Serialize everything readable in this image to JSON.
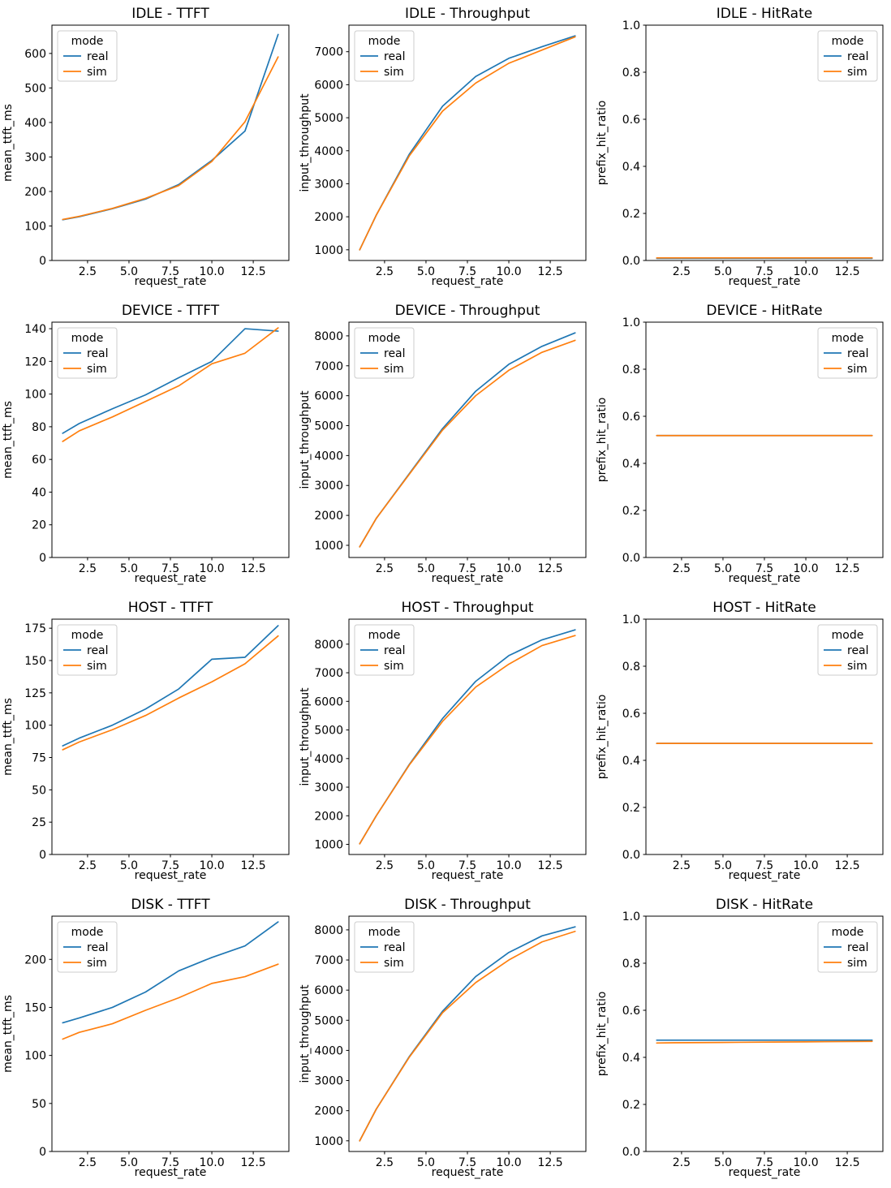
{
  "figure": {
    "background": "#ffffff",
    "legend_title": "mode",
    "series_names": [
      "real",
      "sim"
    ],
    "series_colors": {
      "real": "#1f77b4",
      "sim": "#ff7f0e"
    },
    "rows": [
      "IDLE",
      "DEVICE",
      "HOST",
      "DISK"
    ],
    "columns": [
      "TTFT",
      "Throughput",
      "HitRate"
    ]
  },
  "chart_data": [
    {
      "id": "idle-ttft",
      "type": "line",
      "title": "IDLE - TTFT",
      "xlabel": "request_rate",
      "ylabel": "mean_ttft_ms",
      "x": [
        1,
        2,
        4,
        6,
        8,
        10,
        12,
        14
      ],
      "series": [
        {
          "name": "real",
          "color": "#1f77b4",
          "values": [
            118,
            127,
            150,
            178,
            220,
            290,
            375,
            655
          ]
        },
        {
          "name": "sim",
          "color": "#ff7f0e",
          "values": [
            119,
            128,
            151,
            180,
            217,
            287,
            402,
            590
          ]
        }
      ],
      "xlim": [
        0.35,
        14.65
      ],
      "ylim": [
        0,
        682
      ],
      "xticks": [
        2.5,
        5.0,
        7.5,
        10.0,
        12.5
      ],
      "xtick_labels": [
        "2.5",
        "5.0",
        "7.5",
        "10.0",
        "12.5"
      ],
      "yticks": [
        0,
        100,
        200,
        300,
        400,
        500,
        600
      ],
      "ytick_labels": [
        "0",
        "100",
        "200",
        "300",
        "400",
        "500",
        "600"
      ],
      "grid": false,
      "legend": {
        "title": "mode",
        "position": "upper-left",
        "entries": [
          "real",
          "sim"
        ]
      }
    },
    {
      "id": "idle-throughput",
      "type": "line",
      "title": "IDLE - Throughput",
      "xlabel": "request_rate",
      "ylabel": "input_throughput",
      "x": [
        1,
        2,
        4,
        6,
        8,
        10,
        12,
        14
      ],
      "series": [
        {
          "name": "real",
          "color": "#1f77b4",
          "values": [
            1000,
            2050,
            3900,
            5350,
            6250,
            6800,
            7150,
            7480
          ]
        },
        {
          "name": "sim",
          "color": "#ff7f0e",
          "values": [
            1000,
            2050,
            3850,
            5200,
            6050,
            6650,
            7050,
            7450
          ]
        }
      ],
      "xlim": [
        0.35,
        14.65
      ],
      "ylim": [
        676,
        7804
      ],
      "xticks": [
        2.5,
        5.0,
        7.5,
        10.0,
        12.5
      ],
      "xtick_labels": [
        "2.5",
        "5.0",
        "7.5",
        "10.0",
        "12.5"
      ],
      "yticks": [
        1000,
        2000,
        3000,
        4000,
        5000,
        6000,
        7000
      ],
      "ytick_labels": [
        "1000",
        "2000",
        "3000",
        "4000",
        "5000",
        "6000",
        "7000"
      ],
      "grid": false,
      "legend": {
        "title": "mode",
        "position": "upper-left",
        "entries": [
          "real",
          "sim"
        ]
      }
    },
    {
      "id": "idle-hitrate",
      "type": "line",
      "title": "IDLE - HitRate",
      "xlabel": "request_rate",
      "ylabel": "prefix_hit_ratio",
      "x": [
        1,
        2,
        4,
        6,
        8,
        10,
        12,
        14
      ],
      "series": [
        {
          "name": "real",
          "color": "#1f77b4",
          "values": [
            0.009,
            0.009,
            0.009,
            0.009,
            0.009,
            0.009,
            0.009,
            0.009
          ]
        },
        {
          "name": "sim",
          "color": "#ff7f0e",
          "values": [
            0.011,
            0.011,
            0.011,
            0.011,
            0.011,
            0.011,
            0.011,
            0.011
          ]
        }
      ],
      "xlim": [
        0.35,
        14.65
      ],
      "ylim": [
        0,
        1.0
      ],
      "xticks": [
        2.5,
        5.0,
        7.5,
        10.0,
        12.5
      ],
      "xtick_labels": [
        "2.5",
        "5.0",
        "7.5",
        "10.0",
        "12.5"
      ],
      "yticks": [
        0.0,
        0.2,
        0.4,
        0.6,
        0.8,
        1.0
      ],
      "ytick_labels": [
        "0.0",
        "0.2",
        "0.4",
        "0.6",
        "0.8",
        "1.0"
      ],
      "grid": false,
      "legend": {
        "title": "mode",
        "position": "upper-right",
        "entries": [
          "real",
          "sim"
        ]
      }
    },
    {
      "id": "device-ttft",
      "type": "line",
      "title": "DEVICE - TTFT",
      "xlabel": "request_rate",
      "ylabel": "mean_ttft_ms",
      "x": [
        1,
        2,
        4,
        6,
        8,
        10,
        12,
        14
      ],
      "series": [
        {
          "name": "real",
          "color": "#1f77b4",
          "values": [
            76,
            82,
            91,
            99.5,
            110,
            120,
            140,
            138.5
          ]
        },
        {
          "name": "sim",
          "color": "#ff7f0e",
          "values": [
            71,
            77.5,
            86,
            95.5,
            105,
            118.5,
            125,
            140.5
          ]
        }
      ],
      "xlim": [
        0.35,
        14.65
      ],
      "ylim": [
        0,
        144
      ],
      "xticks": [
        2.5,
        5.0,
        7.5,
        10.0,
        12.5
      ],
      "xtick_labels": [
        "2.5",
        "5.0",
        "7.5",
        "10.0",
        "12.5"
      ],
      "yticks": [
        0,
        20,
        40,
        60,
        80,
        100,
        120,
        140
      ],
      "ytick_labels": [
        "0",
        "20",
        "40",
        "60",
        "80",
        "100",
        "120",
        "140"
      ],
      "grid": false,
      "legend": {
        "title": "mode",
        "position": "upper-left",
        "entries": [
          "real",
          "sim"
        ]
      }
    },
    {
      "id": "device-throughput",
      "type": "line",
      "title": "DEVICE - Throughput",
      "xlabel": "request_rate",
      "ylabel": "input_throughput",
      "x": [
        1,
        2,
        4,
        6,
        8,
        10,
        12,
        14
      ],
      "series": [
        {
          "name": "real",
          "color": "#1f77b4",
          "values": [
            950,
            1900,
            3400,
            4900,
            6150,
            7050,
            7650,
            8100
          ]
        },
        {
          "name": "sim",
          "color": "#ff7f0e",
          "values": [
            950,
            1900,
            3380,
            4850,
            6000,
            6850,
            7450,
            7850
          ]
        }
      ],
      "xlim": [
        0.35,
        14.65
      ],
      "ylim": [
        593,
        8458
      ],
      "xticks": [
        2.5,
        5.0,
        7.5,
        10.0,
        12.5
      ],
      "xtick_labels": [
        "2.5",
        "5.0",
        "7.5",
        "10.0",
        "12.5"
      ],
      "yticks": [
        1000,
        2000,
        3000,
        4000,
        5000,
        6000,
        7000,
        8000
      ],
      "ytick_labels": [
        "1000",
        "2000",
        "3000",
        "4000",
        "5000",
        "6000",
        "7000",
        "8000"
      ],
      "grid": false,
      "legend": {
        "title": "mode",
        "position": "upper-left",
        "entries": [
          "real",
          "sim"
        ]
      }
    },
    {
      "id": "device-hitrate",
      "type": "line",
      "title": "DEVICE - HitRate",
      "xlabel": "request_rate",
      "ylabel": "prefix_hit_ratio",
      "x": [
        1,
        2,
        4,
        6,
        8,
        10,
        12,
        14
      ],
      "series": [
        {
          "name": "real",
          "color": "#1f77b4",
          "values": [
            0.518,
            0.518,
            0.518,
            0.518,
            0.518,
            0.518,
            0.518,
            0.518
          ]
        },
        {
          "name": "sim",
          "color": "#ff7f0e",
          "values": [
            0.518,
            0.518,
            0.518,
            0.518,
            0.518,
            0.518,
            0.518,
            0.518
          ]
        }
      ],
      "xlim": [
        0.35,
        14.65
      ],
      "ylim": [
        0,
        1.0
      ],
      "xticks": [
        2.5,
        5.0,
        7.5,
        10.0,
        12.5
      ],
      "xtick_labels": [
        "2.5",
        "5.0",
        "7.5",
        "10.0",
        "12.5"
      ],
      "yticks": [
        0.0,
        0.2,
        0.4,
        0.6,
        0.8,
        1.0
      ],
      "ytick_labels": [
        "0.0",
        "0.2",
        "0.4",
        "0.6",
        "0.8",
        "1.0"
      ],
      "grid": false,
      "legend": {
        "title": "mode",
        "position": "upper-right",
        "entries": [
          "real",
          "sim"
        ]
      }
    },
    {
      "id": "host-ttft",
      "type": "line",
      "title": "HOST - TTFT",
      "xlabel": "request_rate",
      "ylabel": "mean_ttft_ms",
      "x": [
        1,
        2,
        4,
        6,
        8,
        10,
        12,
        14
      ],
      "series": [
        {
          "name": "real",
          "color": "#1f77b4",
          "values": [
            84,
            90,
            100,
            112.5,
            128,
            151,
            152.5,
            177
          ]
        },
        {
          "name": "sim",
          "color": "#ff7f0e",
          "values": [
            81,
            87,
            96.5,
            107.5,
            121,
            133.5,
            147.5,
            169
          ]
        }
      ],
      "xlim": [
        0.35,
        14.65
      ],
      "ylim": [
        0,
        182
      ],
      "xticks": [
        2.5,
        5.0,
        7.5,
        10.0,
        12.5
      ],
      "xtick_labels": [
        "2.5",
        "5.0",
        "7.5",
        "10.0",
        "12.5"
      ],
      "yticks": [
        0,
        25,
        50,
        75,
        100,
        125,
        150,
        175
      ],
      "ytick_labels": [
        "0",
        "25",
        "50",
        "75",
        "100",
        "125",
        "150",
        "175"
      ],
      "grid": false,
      "legend": {
        "title": "mode",
        "position": "upper-left",
        "entries": [
          "real",
          "sim"
        ]
      }
    },
    {
      "id": "host-throughput",
      "type": "line",
      "title": "HOST - Throughput",
      "xlabel": "request_rate",
      "ylabel": "input_throughput",
      "x": [
        1,
        2,
        4,
        6,
        8,
        10,
        12,
        14
      ],
      "series": [
        {
          "name": "real",
          "color": "#1f77b4",
          "values": [
            1020,
            2000,
            3800,
            5400,
            6700,
            7600,
            8150,
            8500
          ]
        },
        {
          "name": "sim",
          "color": "#ff7f0e",
          "values": [
            1020,
            2000,
            3780,
            5300,
            6500,
            7300,
            7950,
            8300
          ]
        }
      ],
      "xlim": [
        0.35,
        14.65
      ],
      "ylim": [
        646,
        8874
      ],
      "xticks": [
        2.5,
        5.0,
        7.5,
        10.0,
        12.5
      ],
      "xtick_labels": [
        "2.5",
        "5.0",
        "7.5",
        "10.0",
        "12.5"
      ],
      "yticks": [
        1000,
        2000,
        3000,
        4000,
        5000,
        6000,
        7000,
        8000
      ],
      "ytick_labels": [
        "1000",
        "2000",
        "3000",
        "4000",
        "5000",
        "6000",
        "7000",
        "8000"
      ],
      "grid": false,
      "legend": {
        "title": "mode",
        "position": "upper-left",
        "entries": [
          "real",
          "sim"
        ]
      }
    },
    {
      "id": "host-hitrate",
      "type": "line",
      "title": "HOST - HitRate",
      "xlabel": "request_rate",
      "ylabel": "prefix_hit_ratio",
      "x": [
        1,
        2,
        4,
        6,
        8,
        10,
        12,
        14
      ],
      "series": [
        {
          "name": "real",
          "color": "#1f77b4",
          "values": [
            0.472,
            0.472,
            0.472,
            0.472,
            0.472,
            0.472,
            0.472,
            0.472
          ]
        },
        {
          "name": "sim",
          "color": "#ff7f0e",
          "values": [
            0.472,
            0.472,
            0.472,
            0.472,
            0.472,
            0.472,
            0.472,
            0.472
          ]
        }
      ],
      "xlim": [
        0.35,
        14.65
      ],
      "ylim": [
        0,
        1.0
      ],
      "xticks": [
        2.5,
        5.0,
        7.5,
        10.0,
        12.5
      ],
      "xtick_labels": [
        "2.5",
        "5.0",
        "7.5",
        "10.0",
        "12.5"
      ],
      "yticks": [
        0.0,
        0.2,
        0.4,
        0.6,
        0.8,
        1.0
      ],
      "ytick_labels": [
        "0.0",
        "0.2",
        "0.4",
        "0.6",
        "0.8",
        "1.0"
      ],
      "grid": false,
      "legend": {
        "title": "mode",
        "position": "upper-right",
        "entries": [
          "real",
          "sim"
        ]
      }
    },
    {
      "id": "disk-ttft",
      "type": "line",
      "title": "DISK - TTFT",
      "xlabel": "request_rate",
      "ylabel": "mean_ttft_ms",
      "x": [
        1,
        2,
        4,
        6,
        8,
        10,
        12,
        14
      ],
      "series": [
        {
          "name": "real",
          "color": "#1f77b4",
          "values": [
            134,
            139,
            150,
            166,
            188,
            202,
            214,
            239
          ]
        },
        {
          "name": "sim",
          "color": "#ff7f0e",
          "values": [
            117,
            124,
            133,
            147,
            160,
            175,
            182,
            195
          ]
        }
      ],
      "xlim": [
        0.35,
        14.65
      ],
      "ylim": [
        0,
        245
      ],
      "xticks": [
        2.5,
        5.0,
        7.5,
        10.0,
        12.5
      ],
      "xtick_labels": [
        "2.5",
        "5.0",
        "7.5",
        "10.0",
        "12.5"
      ],
      "yticks": [
        0,
        50,
        100,
        150,
        200
      ],
      "ytick_labels": [
        "0",
        "50",
        "100",
        "150",
        "200"
      ],
      "grid": false,
      "legend": {
        "title": "mode",
        "position": "upper-left",
        "entries": [
          "real",
          "sim"
        ]
      }
    },
    {
      "id": "disk-throughput",
      "type": "line",
      "title": "DISK - Throughput",
      "xlabel": "request_rate",
      "ylabel": "input_throughput",
      "x": [
        1,
        2,
        4,
        6,
        8,
        10,
        12,
        14
      ],
      "series": [
        {
          "name": "real",
          "color": "#1f77b4",
          "values": [
            1000,
            2050,
            3800,
            5300,
            6450,
            7250,
            7800,
            8100
          ]
        },
        {
          "name": "sim",
          "color": "#ff7f0e",
          "values": [
            1000,
            2050,
            3780,
            5250,
            6250,
            7000,
            7600,
            7950
          ]
        }
      ],
      "xlim": [
        0.35,
        14.65
      ],
      "ylim": [
        645,
        8455
      ],
      "xticks": [
        2.5,
        5.0,
        7.5,
        10.0,
        12.5
      ],
      "xtick_labels": [
        "2.5",
        "5.0",
        "7.5",
        "10.0",
        "12.5"
      ],
      "yticks": [
        1000,
        2000,
        3000,
        4000,
        5000,
        6000,
        7000,
        8000
      ],
      "ytick_labels": [
        "1000",
        "2000",
        "3000",
        "4000",
        "5000",
        "6000",
        "7000",
        "8000"
      ],
      "grid": false,
      "legend": {
        "title": "mode",
        "position": "upper-left",
        "entries": [
          "real",
          "sim"
        ]
      }
    },
    {
      "id": "disk-hitrate",
      "type": "line",
      "title": "DISK - HitRate",
      "xlabel": "request_rate",
      "ylabel": "prefix_hit_ratio",
      "x": [
        1,
        2,
        4,
        6,
        8,
        10,
        12,
        14
      ],
      "series": [
        {
          "name": "real",
          "color": "#1f77b4",
          "values": [
            0.473,
            0.473,
            0.473,
            0.473,
            0.473,
            0.473,
            0.473,
            0.473
          ]
        },
        {
          "name": "sim",
          "color": "#ff7f0e",
          "values": [
            0.461,
            0.462,
            0.463,
            0.464,
            0.465,
            0.466,
            0.467,
            0.468
          ]
        }
      ],
      "xlim": [
        0.35,
        14.65
      ],
      "ylim": [
        0,
        1.0
      ],
      "xticks": [
        2.5,
        5.0,
        7.5,
        10.0,
        12.5
      ],
      "xtick_labels": [
        "2.5",
        "5.0",
        "7.5",
        "10.0",
        "12.5"
      ],
      "yticks": [
        0.0,
        0.2,
        0.4,
        0.6,
        0.8,
        1.0
      ],
      "ytick_labels": [
        "0.0",
        "0.2",
        "0.4",
        "0.6",
        "0.8",
        "1.0"
      ],
      "grid": false,
      "legend": {
        "title": "mode",
        "position": "upper-right",
        "entries": [
          "real",
          "sim"
        ]
      }
    }
  ]
}
